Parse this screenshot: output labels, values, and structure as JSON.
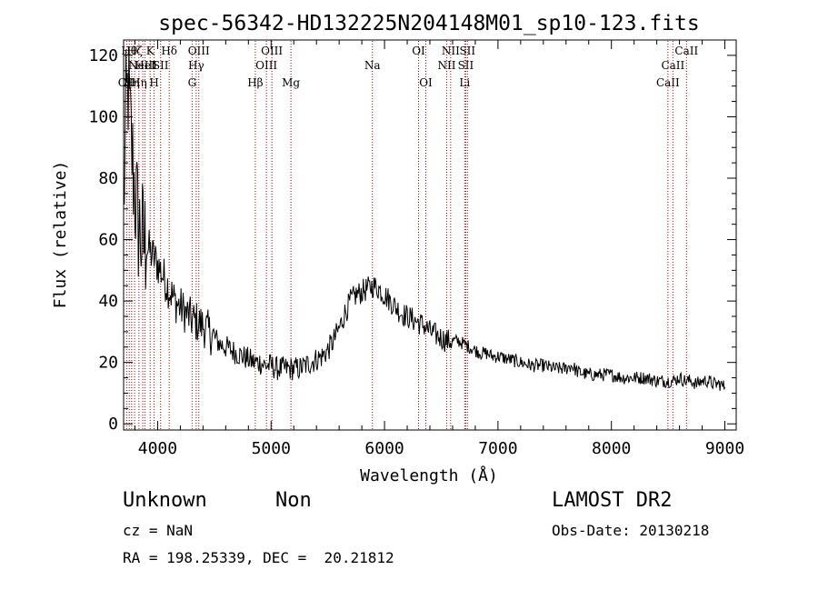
{
  "chart_data": {
    "type": "line",
    "title": "spec-56342-HD132225N204148M01_sp10-123.fits",
    "xlabel": "Wavelength (Å)",
    "ylabel": "Flux (relative)",
    "xlim": [
      3700,
      9100
    ],
    "ylim": [
      -2,
      125
    ],
    "xticks": [
      4000,
      5000,
      6000,
      7000,
      8000,
      9000
    ],
    "yticks": [
      0,
      20,
      40,
      60,
      80,
      100,
      120
    ],
    "grid": false,
    "series": [
      {
        "x": [
          3700,
          3720,
          3740,
          3760,
          3780,
          3800,
          3830,
          3860,
          3900,
          3950,
          4000,
          4050,
          4100,
          4150,
          4200,
          4250,
          4300,
          4350,
          4400,
          4450,
          4500,
          4550,
          4600,
          4650,
          4700,
          4750,
          4800,
          4850,
          4900,
          4950,
          5000,
          5050,
          5100,
          5150,
          5200,
          5250,
          5300,
          5350,
          5400,
          5450,
          5500,
          5550,
          5600,
          5650,
          5700,
          5750,
          5800,
          5850,
          5900,
          5950,
          6000,
          6050,
          6100,
          6150,
          6200,
          6250,
          6300,
          6350,
          6400,
          6450,
          6500,
          6550,
          6600,
          6650,
          6700,
          6750,
          6800,
          6850,
          6900,
          6950,
          7000,
          7100,
          7200,
          7300,
          7400,
          7500,
          7600,
          7650,
          7700,
          7800,
          7900,
          8000,
          8100,
          8200,
          8300,
          8400,
          8500,
          8550,
          8600,
          8650,
          8700,
          8750,
          8800,
          8850,
          8900,
          8950,
          9000
        ],
        "y": [
          70,
          100,
          110,
          95,
          85,
          75,
          65,
          60,
          58,
          55,
          52,
          48,
          44,
          40,
          38,
          36,
          34,
          33,
          32,
          30,
          28,
          26,
          25,
          24,
          23,
          22,
          21,
          20,
          20,
          19,
          19,
          18,
          18,
          18,
          18,
          18,
          19,
          20,
          21,
          22,
          24,
          27,
          31,
          36,
          40,
          42,
          43,
          44,
          45,
          44,
          42,
          40,
          38,
          36,
          35,
          34,
          33,
          32,
          30,
          29,
          28,
          27,
          27,
          27,
          26,
          25,
          24,
          23,
          23,
          22,
          22,
          21,
          20,
          19,
          19,
          18,
          18,
          19,
          17,
          16,
          16,
          16,
          15,
          15,
          15,
          14,
          14,
          14,
          15,
          14,
          14,
          13,
          14,
          14,
          13,
          13,
          12
        ]
      }
    ],
    "line_markers": [
      {
        "wl": 3727,
        "label": "OII",
        "row": 3
      },
      {
        "wl": 3750,
        "label": "Hθ",
        "row": 1
      },
      {
        "wl": 3771,
        "label": "Hη",
        "row": 3
      },
      {
        "wl": 3797,
        "label": "Hζ",
        "row": 1
      },
      {
        "wl": 3835,
        "label": "Hη",
        "row": 3
      },
      {
        "wl": 3869,
        "label": "NeIII",
        "row": 2
      },
      {
        "wl": 3889,
        "label": "HeI",
        "row": 2
      },
      {
        "wl": 3934,
        "label": "K",
        "row": 1
      },
      {
        "wl": 3969,
        "label": "H",
        "row": 3
      },
      {
        "wl": 4026,
        "label": "SII",
        "row": 2
      },
      {
        "wl": 4102,
        "label": "Hδ",
        "row": 1
      },
      {
        "wl": 4304,
        "label": "G",
        "row": 3
      },
      {
        "wl": 4340,
        "label": "Hγ",
        "row": 2
      },
      {
        "wl": 4363,
        "label": "OIII",
        "row": 1
      },
      {
        "wl": 4861,
        "label": "Hβ",
        "row": 3
      },
      {
        "wl": 4959,
        "label": "OIII",
        "row": 2
      },
      {
        "wl": 5007,
        "label": "OIII",
        "row": 1
      },
      {
        "wl": 5175,
        "label": "Mg",
        "row": 3
      },
      {
        "wl": 5893,
        "label": "Na",
        "row": 2
      },
      {
        "wl": 6300,
        "label": "OI",
        "row": 1
      },
      {
        "wl": 6364,
        "label": "OI",
        "row": 3
      },
      {
        "wl": 6548,
        "label": "NII",
        "row": 2
      },
      {
        "wl": 6583,
        "label": "NII",
        "row": 1
      },
      {
        "wl": 6707,
        "label": "Li",
        "row": 3
      },
      {
        "wl": 6716,
        "label": "SII",
        "row": 2
      },
      {
        "wl": 6731,
        "label": "SII",
        "row": 1
      },
      {
        "wl": 8498,
        "label": "CaII",
        "row": 3
      },
      {
        "wl": 8542,
        "label": "CaII",
        "row": 2
      },
      {
        "wl": 8662,
        "label": "CaII",
        "row": 1
      }
    ]
  },
  "info": {
    "classification": "Unknown",
    "subclass": "Non",
    "survey": "LAMOST DR2",
    "cz": "cz = NaN",
    "obs_date": "Obs-Date: 20130218",
    "coords": "RA = 198.25339, DEC =  20.21812"
  }
}
